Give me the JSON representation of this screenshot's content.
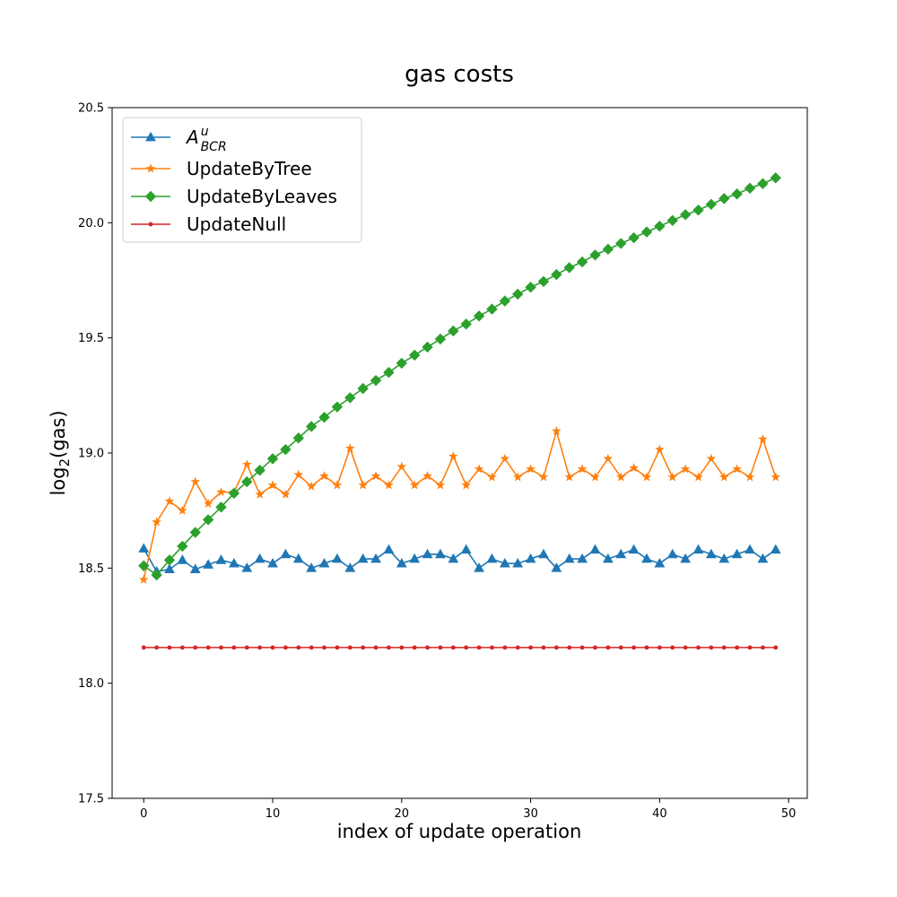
{
  "chart_data": {
    "type": "line",
    "title": "gas costs",
    "xlabel": "index of update operation",
    "ylabel_main": "log",
    "ylabel_sub": "2",
    "ylabel_rest": "(gas)",
    "xlim": [
      -2.45,
      51.45
    ],
    "ylim": [
      17.5,
      20.5
    ],
    "xticks": [
      0,
      10,
      20,
      30,
      40,
      50
    ],
    "xtick_labels": [
      "0",
      "10",
      "20",
      "30",
      "40",
      "50"
    ],
    "yticks": [
      17.5,
      18.0,
      18.5,
      19.0,
      19.5,
      20.0,
      20.5
    ],
    "ytick_labels": [
      "17.5",
      "18.0",
      "18.5",
      "19.0",
      "19.5",
      "20.0",
      "20.5"
    ],
    "grid": false,
    "legend_position": "upper-left",
    "series": [
      {
        "name": "A",
        "name_sup": "u",
        "name_sub": "BCR",
        "color": "#1f77b4",
        "marker": "triangle",
        "values": [
          18.585,
          18.485,
          18.495,
          18.535,
          18.495,
          18.515,
          18.535,
          18.52,
          18.5,
          18.54,
          18.52,
          18.56,
          18.54,
          18.5,
          18.52,
          18.54,
          18.5,
          18.54,
          18.54,
          18.58,
          18.52,
          18.54,
          18.56,
          18.56,
          18.54,
          18.58,
          18.5,
          18.54,
          18.52,
          18.52,
          18.54,
          18.56,
          18.5,
          18.54,
          18.54,
          18.58,
          18.54,
          18.56,
          18.58,
          18.54,
          18.52,
          18.56,
          18.54,
          18.58,
          18.56,
          18.54,
          18.56,
          18.58,
          18.54,
          18.58
        ]
      },
      {
        "name": "UpdateByTree",
        "color": "#ff7f0e",
        "marker": "star",
        "values": [
          18.45,
          18.7,
          18.79,
          18.75,
          18.875,
          18.78,
          18.83,
          18.83,
          18.95,
          18.82,
          18.86,
          18.82,
          18.905,
          18.855,
          18.9,
          18.86,
          19.02,
          18.86,
          18.9,
          18.86,
          18.94,
          18.86,
          18.9,
          18.86,
          18.985,
          18.86,
          18.93,
          18.895,
          18.975,
          18.895,
          18.93,
          18.895,
          19.095,
          18.895,
          18.93,
          18.895,
          18.975,
          18.895,
          18.935,
          18.895,
          19.015,
          18.895,
          18.93,
          18.895,
          18.975,
          18.895,
          18.93,
          18.895,
          19.06,
          18.895
        ]
      },
      {
        "name": "UpdateByLeaves",
        "color": "#2ca02c",
        "marker": "diamond",
        "values": [
          18.51,
          18.47,
          18.535,
          18.595,
          18.655,
          18.71,
          18.765,
          18.825,
          18.875,
          18.925,
          18.975,
          19.015,
          19.065,
          19.115,
          19.155,
          19.2,
          19.24,
          19.28,
          19.315,
          19.35,
          19.39,
          19.425,
          19.46,
          19.495,
          19.53,
          19.56,
          19.595,
          19.625,
          19.66,
          19.69,
          19.72,
          19.745,
          19.775,
          19.805,
          19.83,
          19.86,
          19.885,
          19.91,
          19.935,
          19.96,
          19.985,
          20.01,
          20.035,
          20.055,
          20.08,
          20.105,
          20.125,
          20.15,
          20.17,
          20.195
        ]
      },
      {
        "name": "UpdateNull",
        "color": "#d62728",
        "marker": "point",
        "values": [
          18.155,
          18.155,
          18.155,
          18.155,
          18.155,
          18.155,
          18.155,
          18.155,
          18.155,
          18.155,
          18.155,
          18.155,
          18.155,
          18.155,
          18.155,
          18.155,
          18.155,
          18.155,
          18.155,
          18.155,
          18.155,
          18.155,
          18.155,
          18.155,
          18.155,
          18.155,
          18.155,
          18.155,
          18.155,
          18.155,
          18.155,
          18.155,
          18.155,
          18.155,
          18.155,
          18.155,
          18.155,
          18.155,
          18.155,
          18.155,
          18.155,
          18.155,
          18.155,
          18.155,
          18.155,
          18.155,
          18.155,
          18.155,
          18.155,
          18.155
        ]
      }
    ]
  }
}
